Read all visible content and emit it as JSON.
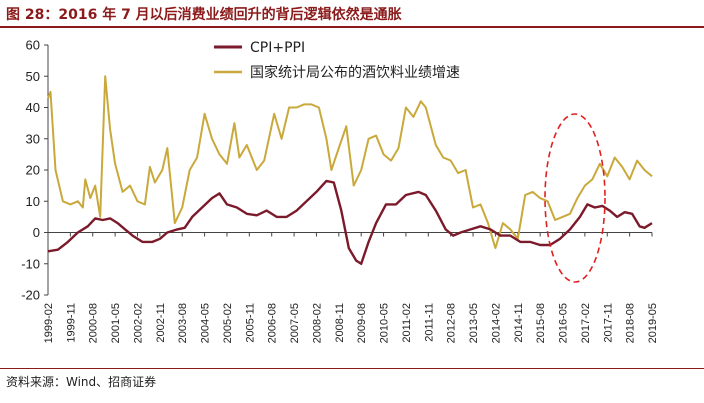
{
  "page": {
    "title": "图 28：2016 年 7 月以后消费业绩回升的背后逻辑依然是通胀",
    "source": "资料来源：Wind、招商证券"
  },
  "colors": {
    "title": "#8b1a1a",
    "cpi_ppi": "#7b1a2a",
    "liquor": "#c9a93c",
    "highlight": "#e02020"
  },
  "chart_data": {
    "type": "line",
    "title": "",
    "xlabel": "",
    "ylabel": "",
    "ylim": [
      -20,
      60
    ],
    "yticks": [
      "60",
      "50",
      "40",
      "30",
      "20",
      "10",
      "0",
      "-10",
      "-20"
    ],
    "xrange": [
      "1999-02",
      "2019-05"
    ],
    "xticks": [
      "1999-02",
      "1999-11",
      "2000-08",
      "2001-05",
      "2002-02",
      "2002-11",
      "2003-08",
      "2004-05",
      "2005-02",
      "2005-11",
      "2006-08",
      "2007-05",
      "2008-02",
      "2008-11",
      "2009-08",
      "2010-05",
      "2011-02",
      "2011-11",
      "2012-08",
      "2013-05",
      "2014-02",
      "2014-11",
      "2015-08",
      "2016-05",
      "2017-02",
      "2017-11",
      "2018-08",
      "2019-05"
    ],
    "grid": false,
    "legend": "top-center",
    "annotation": "dashed red ellipse around 2016-2017",
    "series": [
      {
        "name": "CPI+PPI",
        "color": "#7b1a2a",
        "points": [
          [
            "1999-02",
            -6
          ],
          [
            "1999-06",
            -5.5
          ],
          [
            "1999-10",
            -3
          ],
          [
            "2000-02",
            0
          ],
          [
            "2000-06",
            2
          ],
          [
            "2000-09",
            4.5
          ],
          [
            "2000-12",
            4
          ],
          [
            "2001-03",
            4.5
          ],
          [
            "2001-06",
            3
          ],
          [
            "2001-09",
            1
          ],
          [
            "2001-12",
            -1
          ],
          [
            "2002-04",
            -3
          ],
          [
            "2002-08",
            -3
          ],
          [
            "2002-11",
            -2
          ],
          [
            "2003-02",
            0
          ],
          [
            "2003-06",
            1
          ],
          [
            "2003-09",
            1.5
          ],
          [
            "2003-12",
            5
          ],
          [
            "2004-04",
            8
          ],
          [
            "2004-08",
            11
          ],
          [
            "2004-11",
            12.5
          ],
          [
            "2005-02",
            9
          ],
          [
            "2005-06",
            8
          ],
          [
            "2005-10",
            6
          ],
          [
            "2006-02",
            5.5
          ],
          [
            "2006-06",
            7
          ],
          [
            "2006-10",
            5
          ],
          [
            "2007-02",
            5
          ],
          [
            "2007-06",
            7
          ],
          [
            "2007-10",
            10
          ],
          [
            "2008-02",
            13
          ],
          [
            "2008-06",
            16.5
          ],
          [
            "2008-09",
            16
          ],
          [
            "2008-12",
            7
          ],
          [
            "2009-03",
            -5
          ],
          [
            "2009-06",
            -9
          ],
          [
            "2009-08",
            -10
          ],
          [
            "2009-11",
            -3
          ],
          [
            "2010-02",
            3
          ],
          [
            "2010-06",
            9
          ],
          [
            "2010-10",
            9
          ],
          [
            "2011-02",
            12
          ],
          [
            "2011-07",
            13
          ],
          [
            "2011-10",
            12
          ],
          [
            "2012-02",
            7
          ],
          [
            "2012-06",
            1
          ],
          [
            "2012-09",
            -1
          ],
          [
            "2012-12",
            0
          ],
          [
            "2013-04",
            1
          ],
          [
            "2013-08",
            2
          ],
          [
            "2013-12",
            1
          ],
          [
            "2014-04",
            -1
          ],
          [
            "2014-08",
            -1
          ],
          [
            "2014-12",
            -3
          ],
          [
            "2015-04",
            -3
          ],
          [
            "2015-08",
            -4
          ],
          [
            "2015-12",
            -4
          ],
          [
            "2016-04",
            -2
          ],
          [
            "2016-08",
            1
          ],
          [
            "2016-12",
            5
          ],
          [
            "2017-03",
            9
          ],
          [
            "2017-06",
            8
          ],
          [
            "2017-09",
            8.5
          ],
          [
            "2017-12",
            7
          ],
          [
            "2018-03",
            5
          ],
          [
            "2018-06",
            6.5
          ],
          [
            "2018-09",
            6
          ],
          [
            "2018-12",
            2
          ],
          [
            "2019-02",
            1.5
          ],
          [
            "2019-05",
            3
          ]
        ]
      },
      {
        "name": "国家统计局公布的酒饮料业绩增速",
        "color": "#c9a93c",
        "points": [
          [
            "1999-02",
            43
          ],
          [
            "1999-03",
            45
          ],
          [
            "1999-05",
            20
          ],
          [
            "1999-08",
            10
          ],
          [
            "1999-11",
            9
          ],
          [
            "2000-02",
            10
          ],
          [
            "2000-04",
            8
          ],
          [
            "2000-05",
            17
          ],
          [
            "2000-07",
            11
          ],
          [
            "2000-09",
            15
          ],
          [
            "2000-11",
            5
          ],
          [
            "2001-01",
            50
          ],
          [
            "2001-03",
            33
          ],
          [
            "2001-05",
            22
          ],
          [
            "2001-08",
            13
          ],
          [
            "2001-11",
            15
          ],
          [
            "2002-02",
            10
          ],
          [
            "2002-05",
            9
          ],
          [
            "2002-07",
            21
          ],
          [
            "2002-09",
            16
          ],
          [
            "2002-12",
            20
          ],
          [
            "2003-02",
            27
          ],
          [
            "2003-05",
            3
          ],
          [
            "2003-08",
            8
          ],
          [
            "2003-11",
            20
          ],
          [
            "2004-02",
            24
          ],
          [
            "2004-05",
            38
          ],
          [
            "2004-08",
            30
          ],
          [
            "2004-11",
            25
          ],
          [
            "2005-02",
            22
          ],
          [
            "2005-05",
            35
          ],
          [
            "2005-07",
            24
          ],
          [
            "2005-10",
            28
          ],
          [
            "2006-02",
            20
          ],
          [
            "2006-05",
            23
          ],
          [
            "2006-09",
            38
          ],
          [
            "2006-12",
            30
          ],
          [
            "2007-03",
            40
          ],
          [
            "2007-06",
            40
          ],
          [
            "2007-09",
            41
          ],
          [
            "2007-12",
            41
          ],
          [
            "2008-03",
            40
          ],
          [
            "2008-06",
            30
          ],
          [
            "2008-08",
            20
          ],
          [
            "2008-11",
            27
          ],
          [
            "2009-02",
            34
          ],
          [
            "2009-05",
            15
          ],
          [
            "2009-08",
            20
          ],
          [
            "2009-11",
            30
          ],
          [
            "2010-02",
            31
          ],
          [
            "2010-05",
            25
          ],
          [
            "2010-08",
            23
          ],
          [
            "2010-11",
            27
          ],
          [
            "2011-02",
            40
          ],
          [
            "2011-05",
            37
          ],
          [
            "2011-08",
            42
          ],
          [
            "2011-10",
            40
          ],
          [
            "2012-02",
            28
          ],
          [
            "2012-05",
            24
          ],
          [
            "2012-08",
            23
          ],
          [
            "2012-11",
            19
          ],
          [
            "2013-02",
            20
          ],
          [
            "2013-05",
            8
          ],
          [
            "2013-08",
            9
          ],
          [
            "2013-11",
            3
          ],
          [
            "2014-02",
            -5
          ],
          [
            "2014-05",
            3
          ],
          [
            "2014-08",
            1
          ],
          [
            "2014-11",
            -2
          ],
          [
            "2015-02",
            12
          ],
          [
            "2015-05",
            13
          ],
          [
            "2015-08",
            11
          ],
          [
            "2015-11",
            10
          ],
          [
            "2016-02",
            4
          ],
          [
            "2016-05",
            5
          ],
          [
            "2016-08",
            6
          ],
          [
            "2016-11",
            11
          ],
          [
            "2017-02",
            15
          ],
          [
            "2017-05",
            17
          ],
          [
            "2017-08",
            22
          ],
          [
            "2017-11",
            18
          ],
          [
            "2018-02",
            24
          ],
          [
            "2018-05",
            21
          ],
          [
            "2018-08",
            17
          ],
          [
            "2018-11",
            23
          ],
          [
            "2019-02",
            20
          ],
          [
            "2019-05",
            18
          ]
        ]
      }
    ]
  }
}
